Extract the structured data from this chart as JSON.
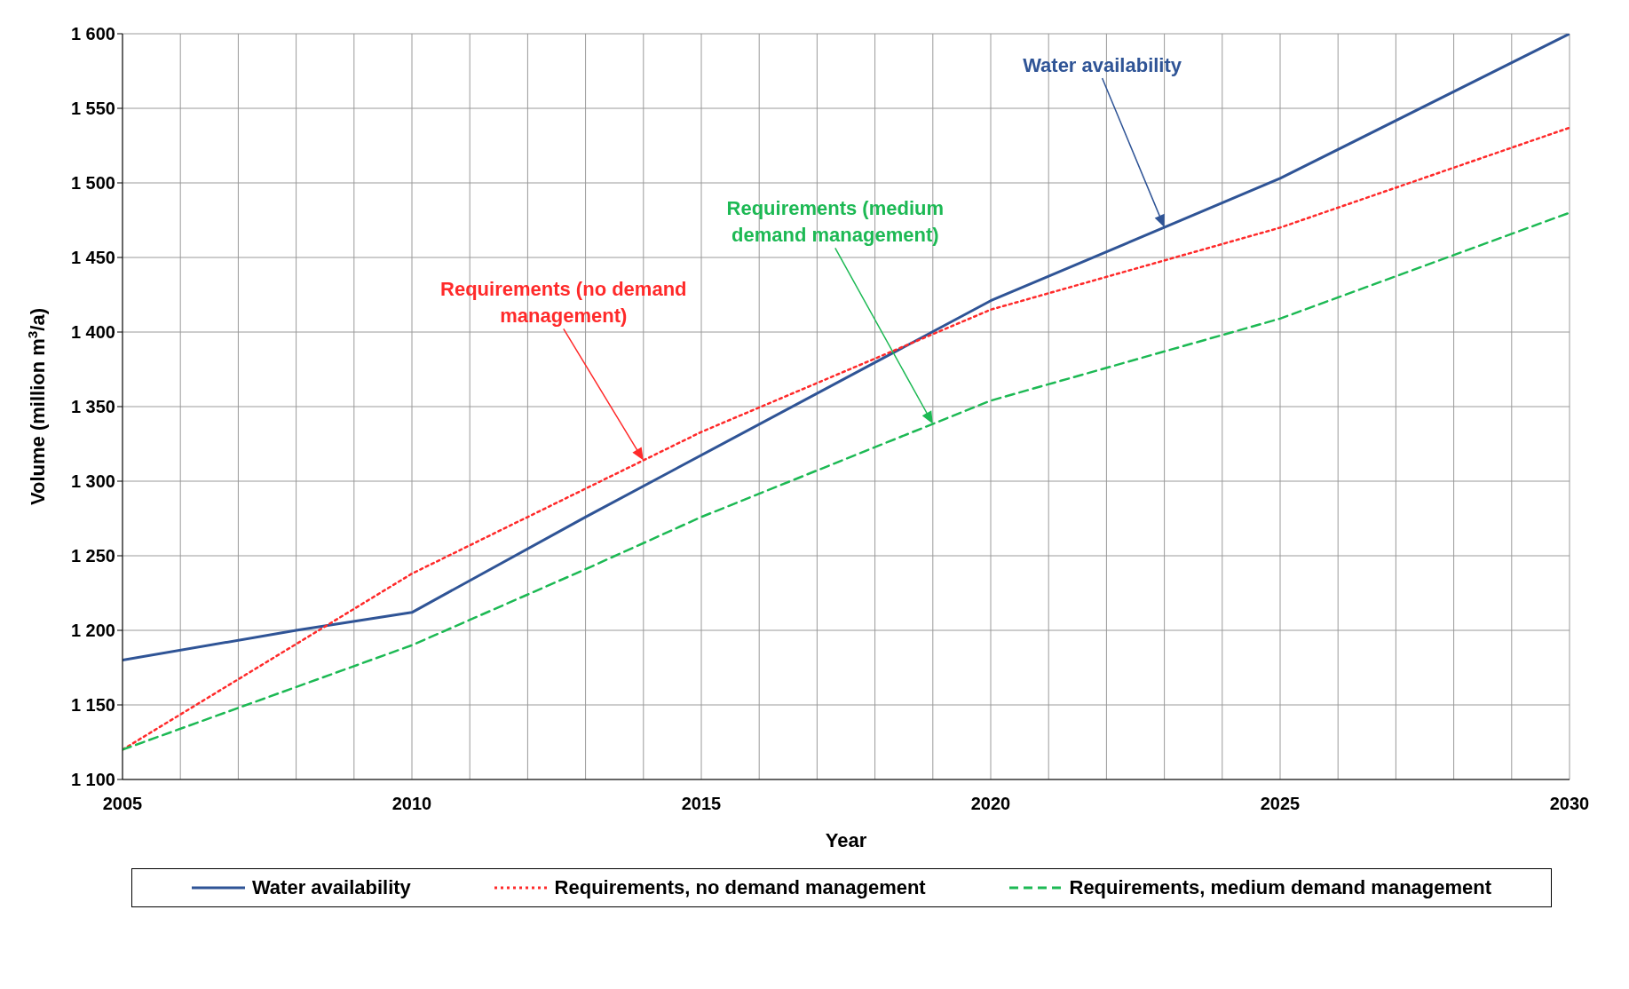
{
  "chart_data": {
    "type": "line",
    "xlabel": "Year",
    "ylabel": "Volume (million m$^{3}$/a)",
    "xlim": [
      2005,
      2030
    ],
    "xticks": [
      2005,
      {
        "value": 2006,
        "label": null
      },
      {
        "value": 2007,
        "label": null
      },
      {
        "value": 2008,
        "label": null
      },
      {
        "value": 2009,
        "label": null
      },
      2010,
      {
        "value": 2011,
        "label": null
      },
      {
        "value": 2012,
        "label": null
      },
      {
        "value": 2013,
        "label": null
      },
      {
        "value": 2014,
        "label": null
      },
      2015,
      {
        "value": 2016,
        "label": null
      },
      {
        "value": 2017,
        "label": null
      },
      {
        "value": 2018,
        "label": null
      },
      {
        "value": 2019,
        "label": null
      },
      2020,
      {
        "value": 2021,
        "label": null
      },
      {
        "value": 2022,
        "label": null
      },
      {
        "value": 2023,
        "label": null
      },
      {
        "value": 2024,
        "label": null
      },
      2025,
      {
        "value": 2026,
        "label": null
      },
      {
        "value": 2027,
        "label": null
      },
      {
        "value": 2028,
        "label": null
      },
      {
        "value": 2029,
        "label": null
      },
      2030
    ],
    "ylim": [
      1100,
      1600
    ],
    "yticks": [
      {
        "value": 1100,
        "label": "1 100"
      },
      {
        "value": 1150,
        "label": "1 150"
      },
      {
        "value": 1200,
        "label": "1 200"
      },
      {
        "value": 1250,
        "label": "1 250"
      },
      {
        "value": 1300,
        "label": "1 300"
      },
      {
        "value": 1350,
        "label": "1 350"
      },
      {
        "value": 1400,
        "label": "1 400"
      },
      {
        "value": 1450,
        "label": "1 450"
      },
      {
        "value": 1500,
        "label": "1 500"
      },
      {
        "value": 1550,
        "label": "1 550"
      },
      {
        "value": 1600,
        "label": "1 600"
      }
    ],
    "grid": true,
    "legend": "bottom",
    "marker": "none",
    "series": [
      {
        "name": "Water availability",
        "color": "#2f5496",
        "line_style": "solid",
        "x": [
          2005,
          2008,
          2010,
          2013,
          2020,
          2025,
          2030
        ],
        "values": [
          1180,
          1200,
          1212,
          1276,
          1421,
          1503,
          1600
        ]
      },
      {
        "name": "Requirements, no demand management",
        "color": "#ff2a2a",
        "line_style": "dotted",
        "x": [
          2005,
          2010,
          2015,
          2020,
          2025,
          2030
        ],
        "values": [
          1120,
          1238,
          1333,
          1415,
          1470,
          1537
        ]
      },
      {
        "name": "Requirements, medium demand management",
        "color": "#1db954",
        "line_style": "dashed",
        "x": [
          2005,
          2010,
          2013,
          2015,
          2020,
          2025,
          2030
        ],
        "values": [
          1120,
          1190,
          1241,
          1276,
          1354,
          1409,
          1480
        ]
      }
    ],
    "annotations": [
      "Water availability",
      "Requirements (no demand management)",
      "Requirements (medium demand management)"
    ]
  }
}
